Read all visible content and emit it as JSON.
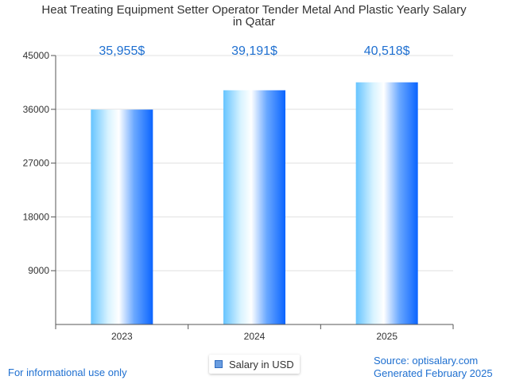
{
  "chart_data": {
    "type": "bar",
    "title_lines": [
      "Heat Treating Equipment Setter Operator Tender Metal And Plastic Yearly Salary",
      "in Qatar"
    ],
    "categories": [
      "2023",
      "2024",
      "2025"
    ],
    "series": [
      {
        "name": "Salary in USD",
        "values": [
          35955,
          39191,
          40518
        ],
        "data_labels": [
          "35,955$",
          "39,191$",
          "40,518$"
        ]
      }
    ],
    "y_ticks": [
      "9000",
      "18000",
      "27000",
      "36000",
      "45000"
    ],
    "y_tick_values": [
      9000,
      18000,
      27000,
      36000,
      45000
    ],
    "ylim": [
      0,
      45000
    ],
    "grid": true,
    "legend_position": "bottom-center",
    "colors": {
      "bar_light": "#cfefff",
      "bar_mid": "#66c4ff",
      "bar_dark": "#0a64ff",
      "label": "#1e6fd0",
      "grid": "#e0e0e0",
      "axis": "#555555"
    }
  },
  "footer": {
    "disclaimer": "For informational use only",
    "source": "Source: optisalary.com",
    "generated": "Generated February 2025"
  },
  "legend": {
    "label": "Salary in USD"
  }
}
